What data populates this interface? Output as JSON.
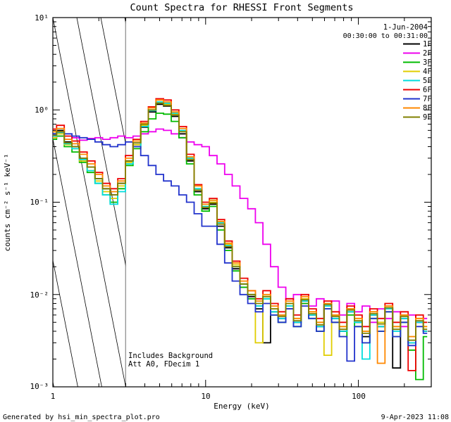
{
  "title": "Count Spectra for RHESSI Front Segments",
  "annotations": {
    "date": "1-Jun-2004",
    "time_range": "00:30:00 to 00:31:00",
    "note1": "Includes Background",
    "note2": "Att A0, FDecim 1"
  },
  "footer": {
    "left": "Generated by hsi_min_spectra_plot.pro",
    "right": "9-Apr-2023 11:08"
  },
  "axes": {
    "xlabel": "Energy (keV)",
    "ylabel": "counts cm⁻² s⁻¹ keV⁻¹",
    "x_ticks": [
      "1",
      "10",
      "100"
    ],
    "y_ticks": [
      "10¹",
      "10⁰",
      "10⁻¹",
      "10⁻²",
      "10⁻³"
    ]
  },
  "chart_data": {
    "type": "line",
    "title": "Count Spectra for RHESSI Front Segments",
    "xlabel": "Energy (keV)",
    "ylabel": "counts cm⁻² s⁻¹ keV⁻¹",
    "x_scale": "log",
    "y_scale": "log",
    "xlim": [
      1,
      300
    ],
    "ylim": [
      0.001,
      10
    ],
    "grid": false,
    "legend_position": "top-right",
    "excluded_region_kev": [
      1,
      3
    ],
    "x": [
      1.0,
      1.12,
      1.26,
      1.41,
      1.58,
      1.78,
      2.0,
      2.24,
      2.51,
      2.82,
      3.16,
      3.55,
      3.98,
      4.47,
      5.01,
      5.62,
      6.31,
      7.08,
      7.94,
      8.91,
      10.0,
      11.2,
      12.6,
      14.1,
      15.8,
      17.8,
      20.0,
      22.4,
      25.1,
      28.2,
      31.6,
      35.5,
      39.8,
      44.7,
      50.1,
      56.2,
      63.1,
      70.8,
      79.4,
      89.1,
      100,
      112,
      126,
      141,
      158,
      178,
      200,
      224,
      251,
      282
    ],
    "series": [
      {
        "name": "1F",
        "color": "#000000",
        "values": [
          0.55,
          0.6,
          0.45,
          0.4,
          0.3,
          0.24,
          0.18,
          0.14,
          0.12,
          0.16,
          0.28,
          0.42,
          0.65,
          0.95,
          1.15,
          1.1,
          0.85,
          0.55,
          0.28,
          0.13,
          0.085,
          0.095,
          0.055,
          0.032,
          0.019,
          0.012,
          0.0095,
          0.007,
          0.003,
          0.0065,
          0.0055,
          0.007,
          0.005,
          0.0085,
          0.006,
          0.0045,
          0.0075,
          0.0055,
          0.004,
          0.0065,
          0.005,
          0.0035,
          0.006,
          0.0045,
          0.007,
          0.0016,
          0.0055,
          0.003,
          0.005,
          0.004
        ]
      },
      {
        "name": "2F",
        "color": "#ee00ee",
        "values": [
          0.5,
          0.52,
          0.48,
          0.5,
          0.47,
          0.49,
          0.5,
          0.48,
          0.5,
          0.52,
          0.5,
          0.52,
          0.55,
          0.58,
          0.62,
          0.6,
          0.55,
          0.5,
          0.45,
          0.42,
          0.4,
          0.32,
          0.26,
          0.2,
          0.15,
          0.11,
          0.085,
          0.06,
          0.035,
          0.02,
          0.012,
          0.009,
          0.01,
          0.008,
          0.0075,
          0.009,
          0.007,
          0.0085,
          0.006,
          0.008,
          0.0065,
          0.0075,
          0.005,
          0.007,
          0.0055,
          0.0065,
          0.0045,
          0.006,
          0.005,
          0.0055
        ]
      },
      {
        "name": "3F",
        "color": "#00bb00",
        "values": [
          0.48,
          0.52,
          0.4,
          0.35,
          0.27,
          0.21,
          0.16,
          0.12,
          0.1,
          0.14,
          0.25,
          0.38,
          0.58,
          0.8,
          0.92,
          0.9,
          0.75,
          0.5,
          0.26,
          0.12,
          0.08,
          0.09,
          0.05,
          0.03,
          0.018,
          0.012,
          0.009,
          0.0075,
          0.009,
          0.006,
          0.005,
          0.0075,
          0.0045,
          0.008,
          0.0055,
          0.004,
          0.007,
          0.005,
          0.0035,
          0.006,
          0.0045,
          0.003,
          0.0055,
          0.004,
          0.0065,
          0.0035,
          0.005,
          0.0025,
          0.0012,
          0.0035
        ]
      },
      {
        "name": "4F",
        "color": "#e0cd00",
        "values": [
          0.5,
          0.55,
          0.42,
          0.38,
          0.28,
          0.22,
          0.17,
          0.13,
          0.11,
          0.15,
          0.27,
          0.42,
          0.68,
          1.0,
          1.2,
          1.15,
          0.9,
          0.6,
          0.3,
          0.14,
          0.09,
          0.1,
          0.06,
          0.035,
          0.021,
          0.013,
          0.01,
          0.003,
          0.0095,
          0.007,
          0.006,
          0.008,
          0.0055,
          0.009,
          0.0065,
          0.005,
          0.0022,
          0.006,
          0.0045,
          0.007,
          0.0055,
          0.004,
          0.0065,
          0.005,
          0.0075,
          0.0045,
          0.006,
          0.0035,
          0.0055,
          0.0045
        ]
      },
      {
        "name": "5F",
        "color": "#00dddd",
        "values": [
          0.52,
          0.57,
          0.43,
          0.38,
          0.29,
          0.22,
          0.16,
          0.12,
          0.095,
          0.13,
          0.26,
          0.4,
          0.66,
          0.98,
          1.22,
          1.18,
          0.92,
          0.6,
          0.3,
          0.14,
          0.09,
          0.105,
          0.06,
          0.034,
          0.02,
          0.013,
          0.01,
          0.0075,
          0.009,
          0.0065,
          0.0055,
          0.0075,
          0.005,
          0.0085,
          0.006,
          0.0045,
          0.0075,
          0.0055,
          0.004,
          0.0065,
          0.005,
          0.002,
          0.006,
          0.0045,
          0.007,
          0.004,
          0.0055,
          0.003,
          0.005,
          0.004
        ]
      },
      {
        "name": "6F",
        "color": "#ee0000",
        "values": [
          0.62,
          0.68,
          0.52,
          0.46,
          0.35,
          0.28,
          0.21,
          0.16,
          0.14,
          0.18,
          0.32,
          0.48,
          0.75,
          1.08,
          1.32,
          1.28,
          1.0,
          0.66,
          0.33,
          0.155,
          0.1,
          0.11,
          0.065,
          0.038,
          0.023,
          0.015,
          0.011,
          0.009,
          0.011,
          0.008,
          0.0065,
          0.009,
          0.006,
          0.01,
          0.007,
          0.0055,
          0.0085,
          0.0065,
          0.005,
          0.0075,
          0.006,
          0.0045,
          0.007,
          0.0055,
          0.008,
          0.005,
          0.0065,
          0.0015,
          0.006,
          0.005
        ]
      },
      {
        "name": "7F",
        "color": "#2233cc",
        "values": [
          0.55,
          0.58,
          0.55,
          0.52,
          0.5,
          0.48,
          0.45,
          0.42,
          0.4,
          0.42,
          0.45,
          0.4,
          0.32,
          0.25,
          0.2,
          0.17,
          0.15,
          0.12,
          0.1,
          0.075,
          0.055,
          0.055,
          0.035,
          0.022,
          0.014,
          0.01,
          0.008,
          0.0065,
          0.008,
          0.006,
          0.005,
          0.007,
          0.0045,
          0.0075,
          0.0055,
          0.004,
          0.007,
          0.005,
          0.0035,
          0.0019,
          0.0045,
          0.003,
          0.0055,
          0.004,
          0.0065,
          0.0035,
          0.005,
          0.0028,
          0.0045,
          0.0038
        ]
      },
      {
        "name": "8F",
        "color": "#ff8800",
        "values": [
          0.58,
          0.63,
          0.48,
          0.43,
          0.33,
          0.26,
          0.2,
          0.15,
          0.13,
          0.17,
          0.3,
          0.46,
          0.72,
          1.05,
          1.28,
          1.22,
          0.95,
          0.63,
          0.31,
          0.15,
          0.095,
          0.105,
          0.062,
          0.036,
          0.022,
          0.014,
          0.011,
          0.0085,
          0.01,
          0.0075,
          0.006,
          0.0085,
          0.0055,
          0.0095,
          0.0065,
          0.005,
          0.008,
          0.006,
          0.0045,
          0.007,
          0.0055,
          0.004,
          0.0065,
          0.0018,
          0.0075,
          0.0045,
          0.006,
          0.0035,
          0.0055,
          0.0045
        ]
      },
      {
        "name": "9F",
        "color": "#808000",
        "values": [
          0.53,
          0.58,
          0.44,
          0.4,
          0.3,
          0.24,
          0.18,
          0.14,
          0.12,
          0.16,
          0.28,
          0.44,
          0.7,
          1.0,
          1.18,
          1.12,
          0.88,
          0.58,
          0.29,
          0.135,
          0.088,
          0.098,
          0.058,
          0.033,
          0.02,
          0.013,
          0.01,
          0.008,
          0.0095,
          0.007,
          0.0058,
          0.008,
          0.0052,
          0.0088,
          0.0062,
          0.0047,
          0.0078,
          0.0058,
          0.0042,
          0.0068,
          0.0052,
          0.0038,
          0.0062,
          0.0048,
          0.0072,
          0.0042,
          0.0058,
          0.0032,
          0.0052,
          0.0042
        ]
      }
    ]
  }
}
